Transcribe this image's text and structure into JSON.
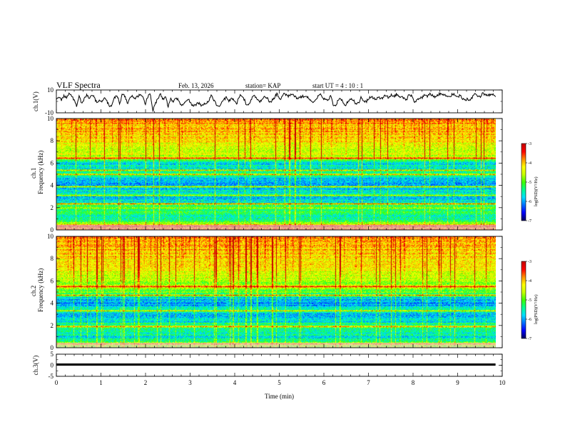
{
  "header": {
    "title": "VLF Spectra",
    "date": "Feb. 13, 2026",
    "station_label": "station= KAP",
    "start_ut_label": "start  UT =   4 : 10 : 1"
  },
  "colors": {
    "background": "#ffffff",
    "axes": "#000000",
    "colormap": [
      "#000060",
      "#0000ff",
      "#0070ff",
      "#00e0ff",
      "#00ff90",
      "#40ff00",
      "#c8ff00",
      "#ffff00",
      "#ff9000",
      "#ff0000",
      "#c80000"
    ]
  },
  "chart_data": [
    {
      "type": "line",
      "name": "ch1-waveform",
      "ylabel": "ch.1(V)",
      "ylim": [
        -10,
        10
      ],
      "yticks": [
        "10",
        "-10"
      ],
      "xlim": [
        0,
        10
      ],
      "values_V": [
        2.4,
        3.1,
        1.5,
        4.6,
        3.2,
        6.8,
        5.4,
        1.2,
        -3.8,
        4.5,
        -2.6,
        2.1,
        5.8,
        1.6,
        6.2,
        3.4,
        -1.8,
        1.2,
        -0.6,
        2.4,
        0.2,
        -5.4,
        -2.1,
        3.3,
        5.2,
        -2.6,
        6.6,
        4.4,
        -1.5,
        3.6,
        4.8,
        2.2,
        4.6,
        5.6,
        3.4,
        -2.4,
        4.2,
        7.2,
        -8.5,
        -2.2,
        2.5,
        6.4,
        1.5,
        4.4,
        -4.6,
        2.2,
        -0.8,
        3.4,
        1.6,
        -2.4,
        -3.1,
        -0.2,
        1.8,
        -1.6,
        -4.4,
        -2.8,
        -1.2,
        -3.4,
        -2.2,
        -1.4,
        0.4,
        4.8,
        1.6,
        -2.6,
        -4.8,
        -1.2,
        1.4,
        3.6,
        0.6,
        2.2,
        1.2,
        -2.4,
        4.4,
        5.6,
        1.6,
        -3.4,
        -1.4,
        2.6,
        5.4,
        2.2,
        -0.6,
        1.3,
        4.5,
        3.4,
        -1.2,
        0.8,
        3.6,
        7.4,
        1.2,
        5.1,
        6.8,
        4.4,
        5.2,
        6.2,
        4.6,
        2.4,
        3.6,
        4.4,
        4.8,
        3.2,
        1.6,
        -0.8,
        1.8,
        4.2,
        6.4,
        2.3,
        1.2,
        0.4,
        4.8,
        -2.4,
        -4.6,
        1.4,
        2.6,
        -1.2,
        -3.2,
        0.6,
        2.1,
        1.4,
        -2.6,
        -1.6,
        3.4,
        0.6,
        -0.4,
        2.2,
        4.4,
        2.4,
        1.8,
        3.6,
        2.4,
        4.2,
        5.6,
        2.8,
        6.1,
        4.4,
        6.3,
        3.8,
        5.2,
        2.4,
        1.6,
        6.4,
        4.8,
        -1.2,
        1.8,
        2.6,
        3.2,
        5.4,
        4.1,
        6.2,
        5.8,
        3.4,
        5.1,
        6.6,
        6.2,
        5.4,
        4.2,
        3.1,
        6.4,
        5.6,
        3.4,
        5.2,
        2.4,
        0.6,
        2.1,
        1.2,
        4.2,
        6.4,
        4.4,
        3.6,
        7.3,
        5.6,
        5.4,
        6.2,
        5.6,
        4.8
      ]
    },
    {
      "type": "heatmap",
      "name": "ch1-spectrogram",
      "ylabel_channel": "ch.1",
      "ylabel": "Frequency (kHz)",
      "ylim": [
        0,
        10
      ],
      "yticks": [
        "0",
        "2",
        "4",
        "6",
        "8",
        "10"
      ],
      "xlim": [
        0,
        10
      ],
      "colorbar_label": "log(PSD)(V²/Hz)",
      "colorbar_range": [
        -7,
        -3
      ],
      "colorbar_ticks": [
        "-3",
        "-4",
        "-5",
        "-6",
        "-7"
      ],
      "band_profile_freq_kHz": [
        0.25,
        0.6,
        1.0,
        1.5,
        2.0,
        2.5,
        3.0,
        3.5,
        4.0,
        4.5,
        5.0,
        5.5,
        6.0,
        6.5,
        7.0,
        7.5,
        8.0,
        8.5,
        9.0,
        9.5,
        9.9
      ],
      "band_profile_logpsd": [
        -3.8,
        -4.8,
        -5.6,
        -5.4,
        -5.0,
        -5.6,
        -5.9,
        -5.6,
        -5.9,
        -6.0,
        -5.4,
        -5.8,
        -5.6,
        -4.7,
        -4.5,
        -4.4,
        -4.3,
        -4.2,
        -4.1,
        -4.0,
        -3.9
      ],
      "strong_lines_kHz": [
        0.3,
        2.3,
        3.1,
        3.9,
        4.95,
        5.35,
        6.45
      ]
    },
    {
      "type": "heatmap",
      "name": "ch2-spectrogram",
      "ylabel_channel": "ch.2",
      "ylabel": "Frequency (kHz)",
      "ylim": [
        0,
        10
      ],
      "yticks": [
        "0",
        "2",
        "4",
        "6",
        "8",
        "10"
      ],
      "xlim": [
        0,
        10
      ],
      "colorbar_label": "log(PSD)(V²/Hz)",
      "colorbar_range": [
        -7,
        -3
      ],
      "colorbar_ticks": [
        "-3",
        "-4",
        "-5",
        "-6",
        "-7"
      ],
      "band_profile_freq_kHz": [
        0.25,
        0.6,
        1.0,
        1.5,
        2.0,
        2.5,
        3.0,
        3.5,
        4.0,
        4.5,
        5.0,
        5.5,
        6.0,
        6.5,
        7.0,
        7.5,
        8.0,
        8.5,
        9.0,
        9.5,
        9.9
      ],
      "band_profile_logpsd": [
        -5.2,
        -5.5,
        -5.6,
        -5.4,
        -5.3,
        -5.8,
        -5.9,
        -5.7,
        -6.1,
        -5.7,
        -5.0,
        -4.8,
        -4.6,
        -4.5,
        -4.4,
        -4.3,
        -4.2,
        -4.1,
        -4.0,
        -4.0,
        -3.9
      ],
      "strong_lines_kHz": [
        0.3,
        1.9,
        3.3,
        4.7,
        5.5
      ]
    },
    {
      "type": "line",
      "name": "ch3-waveform",
      "ylabel": "ch.3(V)",
      "ylim": [
        -5,
        5
      ],
      "yticks": [
        "5",
        "0",
        "-5"
      ],
      "xlim": [
        0,
        10
      ],
      "level_V": 0.3,
      "amplitude_V": 0.5
    }
  ],
  "x_axis": {
    "label": "Time (min)",
    "ticks": [
      "0",
      "1",
      "2",
      "3",
      "4",
      "5",
      "6",
      "7",
      "8",
      "9",
      "10"
    ],
    "data_end_min": 9.85
  }
}
